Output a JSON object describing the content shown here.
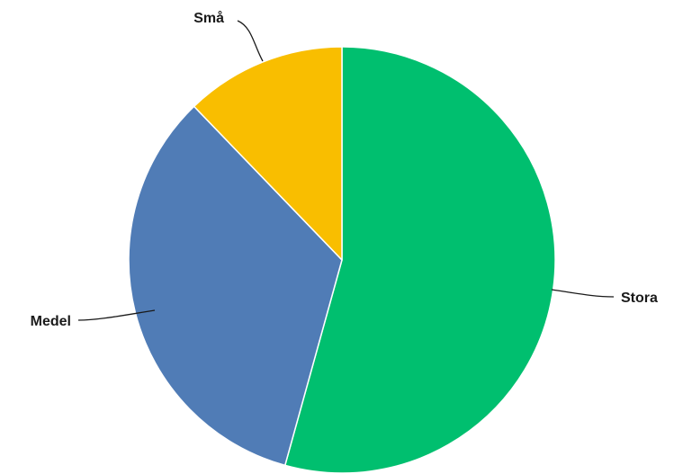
{
  "chart_data": {
    "type": "pie",
    "title": "",
    "start": "top",
    "direction": "clockwise",
    "slices": [
      {
        "label": "Stora",
        "value": 54.3,
        "color": "#00bf6f"
      },
      {
        "label": "Medel",
        "value": 33.5,
        "color": "#507cb6"
      },
      {
        "label": "Små",
        "value": 12.2,
        "color": "#f9be00"
      }
    ]
  }
}
